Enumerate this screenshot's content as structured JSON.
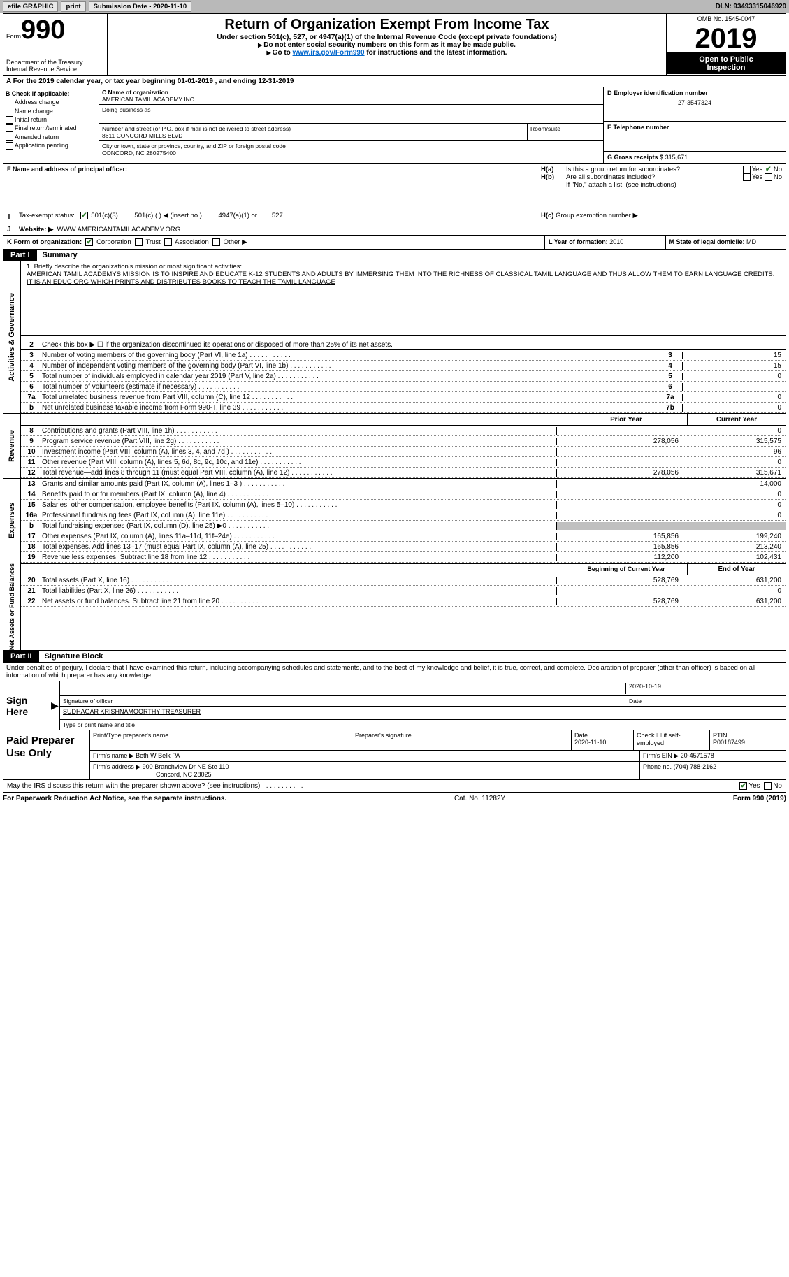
{
  "toolbar": {
    "efile_label": "efile GRAPHIC",
    "print_label": "print",
    "submission_label": "Submission Date - 2020-11-10",
    "dln_label": "DLN: 93493315046920"
  },
  "header": {
    "form_word": "Form",
    "form_num": "990",
    "dept": "Department of the Treasury\nInternal Revenue Service",
    "title": "Return of Organization Exempt From Income Tax",
    "sub": "Under section 501(c), 527, or 4947(a)(1) of the Internal Revenue Code (except private foundations)",
    "note1": "Do not enter social security numbers on this form as it may be made public.",
    "note2_pre": "Go to ",
    "note2_link": "www.irs.gov/Form990",
    "note2_post": " for instructions and the latest information.",
    "omb": "OMB No. 1545-0047",
    "year": "2019",
    "open1": "Open to Public",
    "open2": "Inspection"
  },
  "sectionA": {
    "text_pre": "For the 2019 calendar year, or tax year beginning ",
    "date1": "01-01-2019",
    "mid": " , and ending ",
    "date2": "12-31-2019"
  },
  "colB": {
    "hdr": "B Check if applicable:",
    "addr": "Address change",
    "name": "Name change",
    "init": "Initial return",
    "final": "Final return/terminated",
    "amend": "Amended return",
    "app": "Application pending"
  },
  "org": {
    "c_hdr": "C Name of organization",
    "name": "AMERICAN TAMIL ACADEMY INC",
    "dba_hdr": "Doing business as",
    "dba": "",
    "addr_hdr": "Number and street (or P.O. box if mail is not delivered to street address)",
    "room_hdr": "Room/suite",
    "addr": "8611 CONCORD MILLS BLVD",
    "city_hdr": "City or town, state or province, country, and ZIP or foreign postal code",
    "city": "CONCORD, NC  280275400"
  },
  "right": {
    "d_hdr": "D Employer identification number",
    "ein": "27-3547324",
    "e_hdr": "E Telephone number",
    "phone": "",
    "g_hdr": "G Gross receipts $",
    "gross": "315,671"
  },
  "officer": {
    "f_hdr": "F Name and address of principal officer:",
    "ha": "Is this a group return for subordinates?",
    "hb": "Are all subordinates included?",
    "h_note": "If \"No,\" attach a list. (see instructions)",
    "hc": "Group exemption number ▶"
  },
  "tax_status": {
    "label": "Tax-exempt status:",
    "opt1": "501(c)(3)",
    "opt2": "501(c) (  ) ◀ (insert no.)",
    "opt3": "4947(a)(1) or",
    "opt4": "527"
  },
  "site": {
    "label": "Website: ▶",
    "url": "WWW.AMERICANTAMILACADEMY.ORG"
  },
  "kllm": {
    "k_label": "K Form of organization:",
    "corp": "Corporation",
    "trust": "Trust",
    "assoc": "Association",
    "other": "Other ▶",
    "l_label": "L Year of formation:",
    "l_val": "2010",
    "m_label": "M State of legal domicile:",
    "m_val": "MD"
  },
  "part1": {
    "hdr": "Part I",
    "title": "Summary",
    "l1_hdr": "Briefly describe the organization's mission or most significant activities:",
    "mission": "AMERICAN TAMIL ACADEMYS MISSION IS TO INSPIRE AND EDUCATE K-12 STUDENTS AND ADULTS BY IMMERSING THEM INTO THE RICHNESS OF CLASSICAL TAMIL LANGUAGE AND THUS ALLOW THEM TO EARN LANGUAGE CREDITS. IT IS AN EDUC ORG WHICH PRINTS AND DISTRIBUTES BOOKS TO TEACH THE TAMIL LANGUAGE",
    "l2": "Check this box ▶ ☐  if the organization discontinued its operations or disposed of more than 25% of its net assets.",
    "lines": [
      {
        "n": "3",
        "t": "Number of voting members of the governing body (Part VI, line 1a)",
        "box": "3",
        "v": "15"
      },
      {
        "n": "4",
        "t": "Number of independent voting members of the governing body (Part VI, line 1b)",
        "box": "4",
        "v": "15"
      },
      {
        "n": "5",
        "t": "Total number of individuals employed in calendar year 2019 (Part V, line 2a)",
        "box": "5",
        "v": "0"
      },
      {
        "n": "6",
        "t": "Total number of volunteers (estimate if necessary)",
        "box": "6",
        "v": ""
      },
      {
        "n": "7a",
        "t": "Total unrelated business revenue from Part VIII, column (C), line 12",
        "box": "7a",
        "v": "0"
      },
      {
        "n": "b",
        "t": "Net unrelated business taxable income from Form 990-T, line 39",
        "box": "7b",
        "v": "0"
      }
    ],
    "prior_hdr": "Prior Year",
    "curr_hdr": "Current Year",
    "rev": [
      {
        "n": "8",
        "t": "Contributions and grants (Part VIII, line 1h)",
        "p": "",
        "c": "0"
      },
      {
        "n": "9",
        "t": "Program service revenue (Part VIII, line 2g)",
        "p": "278,056",
        "c": "315,575"
      },
      {
        "n": "10",
        "t": "Investment income (Part VIII, column (A), lines 3, 4, and 7d )",
        "p": "",
        "c": "96"
      },
      {
        "n": "11",
        "t": "Other revenue (Part VIII, column (A), lines 5, 6d, 8c, 9c, 10c, and 11e)",
        "p": "",
        "c": "0"
      },
      {
        "n": "12",
        "t": "Total revenue—add lines 8 through 11 (must equal Part VIII, column (A), line 12)",
        "p": "278,056",
        "c": "315,671"
      }
    ],
    "exp": [
      {
        "n": "13",
        "t": "Grants and similar amounts paid (Part IX, column (A), lines 1–3 )",
        "p": "",
        "c": "14,000"
      },
      {
        "n": "14",
        "t": "Benefits paid to or for members (Part IX, column (A), line 4)",
        "p": "",
        "c": "0"
      },
      {
        "n": "15",
        "t": "Salaries, other compensation, employee benefits (Part IX, column (A), lines 5–10)",
        "p": "",
        "c": "0"
      },
      {
        "n": "16a",
        "t": "Professional fundraising fees (Part IX, column (A), line 11e)",
        "p": "",
        "c": "0"
      },
      {
        "n": "b",
        "t": "Total fundraising expenses (Part IX, column (D), line 25) ▶0",
        "p": "SHADE",
        "c": "SHADE"
      },
      {
        "n": "17",
        "t": "Other expenses (Part IX, column (A), lines 11a–11d, 11f–24e)",
        "p": "165,856",
        "c": "199,240"
      },
      {
        "n": "18",
        "t": "Total expenses. Add lines 13–17 (must equal Part IX, column (A), line 25)",
        "p": "165,856",
        "c": "213,240"
      },
      {
        "n": "19",
        "t": "Revenue less expenses. Subtract line 18 from line 12",
        "p": "112,200",
        "c": "102,431"
      }
    ],
    "begin_hdr": "Beginning of Current Year",
    "end_hdr": "End of Year",
    "net": [
      {
        "n": "20",
        "t": "Total assets (Part X, line 16)",
        "p": "528,769",
        "c": "631,200"
      },
      {
        "n": "21",
        "t": "Total liabilities (Part X, line 26)",
        "p": "",
        "c": "0"
      },
      {
        "n": "22",
        "t": "Net assets or fund balances. Subtract line 21 from line 20",
        "p": "528,769",
        "c": "631,200"
      }
    ],
    "tab_gov": "Activities & Governance",
    "tab_rev": "Revenue",
    "tab_exp": "Expenses",
    "tab_net": "Net Assets or Fund Balances"
  },
  "part2": {
    "hdr": "Part II",
    "title": "Signature Block",
    "decl": "Under penalties of perjury, I declare that I have examined this return, including accompanying schedules and statements, and to the best of my knowledge and belief, it is true, correct, and complete. Declaration of preparer (other than officer) is based on all information of which preparer has any knowledge.",
    "sign_here": "Sign Here",
    "sig_of_officer": "Signature of officer",
    "sig_date": "2020-10-19",
    "date_lbl": "Date",
    "officer_name": "SUDHAGAR KRISHNAMOORTHY TREASURER",
    "officer_type": "Type or print name and title",
    "paid": "Paid Preparer Use Only",
    "prep_name_hdr": "Print/Type preparer's name",
    "prep_sig_hdr": "Preparer's signature",
    "prep_date_hdr": "Date",
    "prep_date": "2020-11-10",
    "check_if": "Check ☐ if self-employed",
    "ptin_hdr": "PTIN",
    "ptin": "P00187499",
    "firm_name_lbl": "Firm's name    ▶",
    "firm_name": "Beth W Belk PA",
    "firm_ein_lbl": "Firm's EIN ▶",
    "firm_ein": "20-4571578",
    "firm_addr_lbl": "Firm's address ▶",
    "firm_addr1": "900 Branchview Dr NE Ste 110",
    "firm_addr2": "Concord, NC  28025",
    "firm_phone_lbl": "Phone no.",
    "firm_phone": "(704) 788-2162",
    "discuss": "May the IRS discuss this return with the preparer shown above? (see instructions)",
    "yes": "Yes",
    "no": "No"
  },
  "footer": {
    "left": "For Paperwork Reduction Act Notice, see the separate instructions.",
    "center": "Cat. No. 11282Y",
    "right": "Form 990 (2019)"
  },
  "checkbox_yes_no": {
    "yes": "Yes",
    "no": "No"
  }
}
